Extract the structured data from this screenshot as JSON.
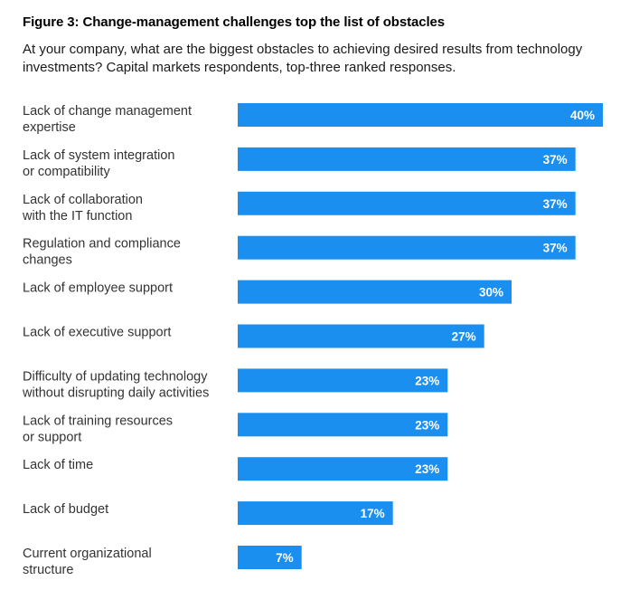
{
  "header": {
    "title": "Figure 3: Change-management challenges top the list of obstacles",
    "subtitle": "At your company, what are the biggest obstacles to achieving desired results from technology investments? Capital markets respondents, top-three ranked responses."
  },
  "colors": {
    "bar": "#1a8ff0",
    "bar_label": "#ffffff",
    "category_label": "#333333"
  },
  "chart_data": {
    "type": "bar",
    "orientation": "horizontal",
    "value_suffix": "%",
    "xlim": [
      0,
      40
    ],
    "categories": [
      [
        "Lack of change management",
        "expertise"
      ],
      [
        "Lack of system integration",
        "or compatibility"
      ],
      [
        "Lack of collaboration",
        "with the IT function"
      ],
      [
        "Regulation and compliance",
        "changes"
      ],
      [
        "Lack of employee support"
      ],
      [
        "Lack of executive support"
      ],
      [
        "Difficulty of updating technology",
        "without disrupting daily activities"
      ],
      [
        "Lack of training resources",
        "or support"
      ],
      [
        "Lack of time"
      ],
      [
        "Lack of budget"
      ],
      [
        "Current organizational",
        "structure"
      ]
    ],
    "values": [
      40,
      37,
      37,
      37,
      30,
      27,
      23,
      23,
      23,
      17,
      7
    ],
    "value_labels": [
      "40%",
      "37%",
      "37%",
      "37%",
      "30%",
      "27%",
      "23%",
      "23%",
      "23%",
      "17%",
      "7%"
    ]
  }
}
